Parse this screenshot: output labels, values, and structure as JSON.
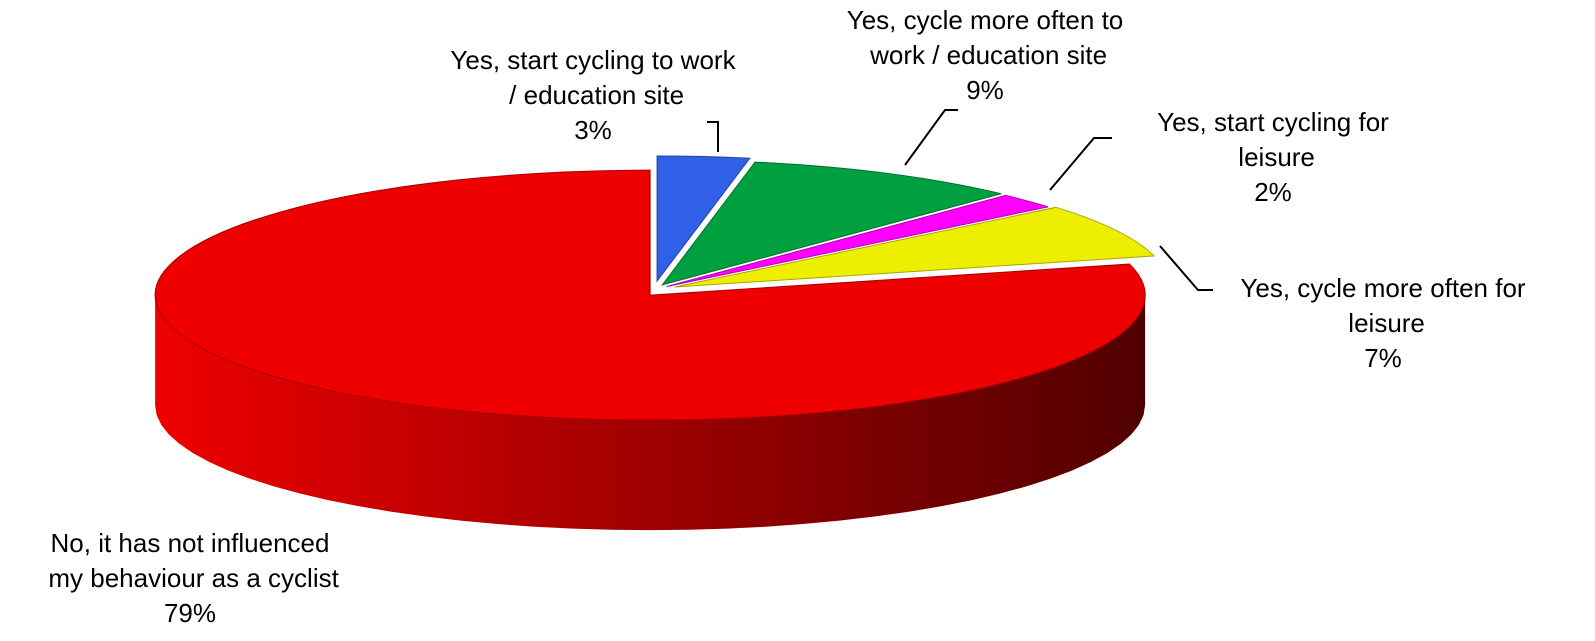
{
  "chart_data": {
    "type": "pie",
    "categories": [
      "Yes, start cycling to work / education site",
      "Yes, cycle more often to work / education site",
      "Yes, start cycling for leisure",
      "Yes, cycle more often for leisure",
      "No, it has not influenced my behaviour as a cyclist"
    ],
    "values": [
      3,
      9,
      2,
      7,
      79
    ],
    "value_labels": [
      "3%",
      "9%",
      "2%",
      "7%",
      "79%"
    ],
    "colors": [
      "#3060e8",
      "#00a040",
      "#ff00ff",
      "#eeee00",
      "#ee0000"
    ]
  }
}
